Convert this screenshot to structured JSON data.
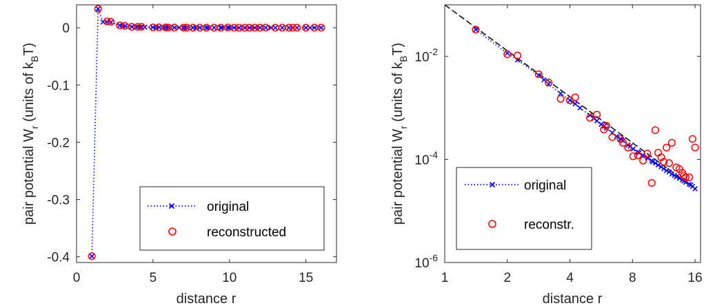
{
  "colors": {
    "original": "#0000ff",
    "reconstructed": "#ff0000",
    "fit_line": "#000000",
    "axes": "#262626"
  },
  "chart_data": [
    {
      "type": "scatter",
      "xscale": "linear",
      "yscale": "linear",
      "xlim": [
        0,
        17
      ],
      "ylim": [
        -0.41,
        0.04
      ],
      "xlabel": "distance r",
      "ylabel_main": "pair potential W",
      "ylabel_sub": "r",
      "ylabel_units_open": " (units of k",
      "ylabel_units_sub": "B",
      "ylabel_units_close": "T)",
      "xtick_values": [
        0,
        5,
        10,
        15
      ],
      "xtick_labels": [
        "0",
        "5",
        "10",
        "15"
      ],
      "ytick_values": [
        0,
        -0.1,
        -0.2,
        -0.3,
        -0.4
      ],
      "ytick_labels": [
        "0",
        "-0.1",
        "-0.2",
        "-0.3",
        "-0.4"
      ],
      "grid": false,
      "legend": {
        "placement": "bottom-right",
        "entries": [
          "original",
          "reconstructed"
        ]
      },
      "series": [
        {
          "name": "original",
          "style": "dotted-line-x-marker",
          "x": [
            1.0,
            1.41,
            1.73,
            2.0,
            2.24,
            2.83,
            3.0,
            3.16,
            3.61,
            4.0,
            4.12,
            4.24,
            4.47,
            5.0,
            5.2,
            5.39,
            5.66,
            5.83,
            6.0,
            6.4,
            6.71,
            7.0,
            7.07,
            7.21,
            7.62,
            7.81,
            8.06,
            8.49,
            8.6,
            9.0,
            9.43,
            9.49,
            9.9,
            10.0,
            10.3,
            10.63,
            11.0,
            11.31,
            11.66,
            12.0,
            12.37,
            12.73,
            13.0,
            13.45,
            13.89,
            14.14,
            14.42,
            15.0,
            15.26,
            15.56,
            16.0
          ],
          "y": [
            -0.399,
            0.033,
            0.01,
            0.0095,
            0.0091,
            0.004,
            0.0032,
            0.0029,
            0.0017,
            0.0015,
            0.0014,
            0.0013,
            0.0011,
            0.0008,
            0.0007,
            0.0006,
            0.0005,
            0.0004,
            0.00035,
            0.0003,
            0.00025,
            0.0002,
            0.0002,
            0.00018,
            0.00016,
            0.00015,
            0.00013,
            0.00011,
            0.0001,
            9e-05,
            8e-05,
            8e-05,
            7e-05,
            7e-05,
            6e-05,
            6e-05,
            5e-05,
            5e-05,
            4e-05,
            4e-05,
            4e-05,
            3e-05,
            3e-05,
            3e-05,
            3e-05,
            3e-05,
            3e-05,
            2e-05,
            2e-05,
            2e-05,
            2e-05
          ]
        },
        {
          "name": "reconstructed",
          "style": "open-circle-marker",
          "x": [
            1.0,
            1.41,
            2.0,
            2.24,
            2.83,
            3.16,
            3.61,
            4.0,
            4.24,
            5.0,
            5.39,
            5.83,
            6.0,
            6.4,
            7.0,
            7.21,
            7.62,
            8.06,
            8.49,
            9.0,
            9.43,
            9.9,
            10.3,
            10.63,
            11.0,
            11.31,
            11.66,
            12.0,
            12.37,
            13.0,
            13.45,
            13.89,
            14.14,
            14.42,
            15.0,
            15.56,
            16.0
          ],
          "y": [
            -0.399,
            0.033,
            0.011,
            0.0104,
            0.0042,
            0.0033,
            0.0016,
            0.0015,
            0.0016,
            0.0006,
            0.0007,
            0.0005,
            0.0003,
            0.0002,
            0.00025,
            0.0002,
            0.00011,
            0.00012,
            3e-05,
            0.0001,
            7e-05,
            0.00035,
            0.00015,
            7e-05,
            6e-05,
            0.0001,
            5e-05,
            4e-05,
            0.0003,
            4e-05,
            9e-05,
            4e-05,
            4e-05,
            5e-05,
            3e-05,
            2e-05,
            2e-05
          ]
        }
      ]
    },
    {
      "type": "scatter",
      "xscale": "log2",
      "yscale": "log10",
      "xlim": [
        1,
        17
      ],
      "ylim": [
        1e-06,
        0.1
      ],
      "xlabel": "distance r",
      "ylabel_main": "pair potential W",
      "ylabel_sub": "r",
      "ylabel_units_open": " (units of k",
      "ylabel_units_sub": "B",
      "ylabel_units_close": "T)",
      "xtick_values": [
        1,
        2,
        4,
        8,
        16
      ],
      "xtick_labels": [
        "1",
        "2",
        "4",
        "8",
        "16"
      ],
      "ytick_values": [
        0.01,
        0.0001,
        1e-06
      ],
      "ytick_base": "10",
      "ytick_exponents": [
        "-2",
        "-4",
        "-6"
      ],
      "grid": false,
      "legend": {
        "placement": "bottom-left",
        "entries": [
          "original",
          "reconstr."
        ]
      },
      "series": [
        {
          "name": "original",
          "style": "dotted-line-x-marker",
          "x": [
            1.41,
            2.0,
            2.24,
            2.83,
            3.0,
            3.16,
            3.61,
            4.0,
            4.12,
            4.24,
            4.47,
            5.0,
            5.2,
            5.39,
            5.66,
            5.83,
            6.0,
            6.4,
            6.71,
            7.0,
            7.07,
            7.21,
            7.62,
            7.81,
            8.06,
            8.49,
            8.6,
            9.0,
            9.43,
            9.49,
            9.9,
            10.0,
            10.3,
            10.63,
            11.0,
            11.31,
            11.66,
            12.0,
            12.37,
            12.73,
            13.0,
            13.45,
            13.89,
            14.14,
            14.42,
            15.0,
            15.26,
            15.56,
            16.0
          ],
          "y": [
            0.033,
            0.0115,
            0.0085,
            0.0043,
            0.0035,
            0.0029,
            0.0019,
            0.0014,
            0.0013,
            0.0012,
            0.001,
            0.00072,
            0.00063,
            0.00056,
            0.00048,
            0.00044,
            0.0004,
            0.00033,
            0.00028,
            0.00025,
            0.00024,
            0.00023,
            0.00019,
            0.00018,
            0.00016,
            0.00014,
            0.000135,
            0.00012,
            0.00011,
            0.000105,
            9.5e-05,
            9e-05,
            8.5e-05,
            7.8e-05,
            7.2e-05,
            6.6e-05,
            6.1e-05,
            5.7e-05,
            5.2e-05,
            4.9e-05,
            4.6e-05,
            4.3e-05,
            4e-05,
            3.8e-05,
            3.6e-05,
            3.3e-05,
            3.2e-05,
            3e-05,
            2.7e-05
          ]
        },
        {
          "name": "reconstr.",
          "style": "open-circle-marker",
          "x": [
            1.41,
            2.0,
            2.24,
            2.83,
            3.16,
            3.61,
            4.0,
            4.24,
            5.0,
            5.39,
            5.83,
            6.0,
            6.4,
            7.0,
            7.21,
            7.62,
            8.06,
            8.49,
            9.0,
            9.43,
            9.9,
            10.3,
            10.63,
            11.0,
            11.31,
            11.66,
            12.0,
            12.37,
            13.0,
            13.45,
            13.89,
            14.14,
            14.42,
            15.0,
            15.56,
            16.0
          ],
          "y": [
            0.033,
            0.011,
            0.0104,
            0.0045,
            0.0031,
            0.0015,
            0.0014,
            0.0016,
            0.00064,
            0.00074,
            0.00038,
            0.00045,
            0.00027,
            0.00025,
            0.00021,
            0.00017,
            0.000115,
            0.00012,
            9.5e-05,
            0.00013,
            3.5e-05,
            0.00037,
            0.000135,
            0.00011,
            9e-05,
            0.00017,
            8.5e-05,
            0.00021,
            7e-05,
            6.5e-05,
            5.5e-05,
            4.8e-05,
            4.5e-05,
            4.5e-05,
            0.00025,
            0.00017
          ]
        }
      ],
      "fit_line": {
        "style": "dashed",
        "x": [
          1,
          16
        ],
        "y": [
          0.1,
          2.7e-05
        ]
      }
    }
  ]
}
